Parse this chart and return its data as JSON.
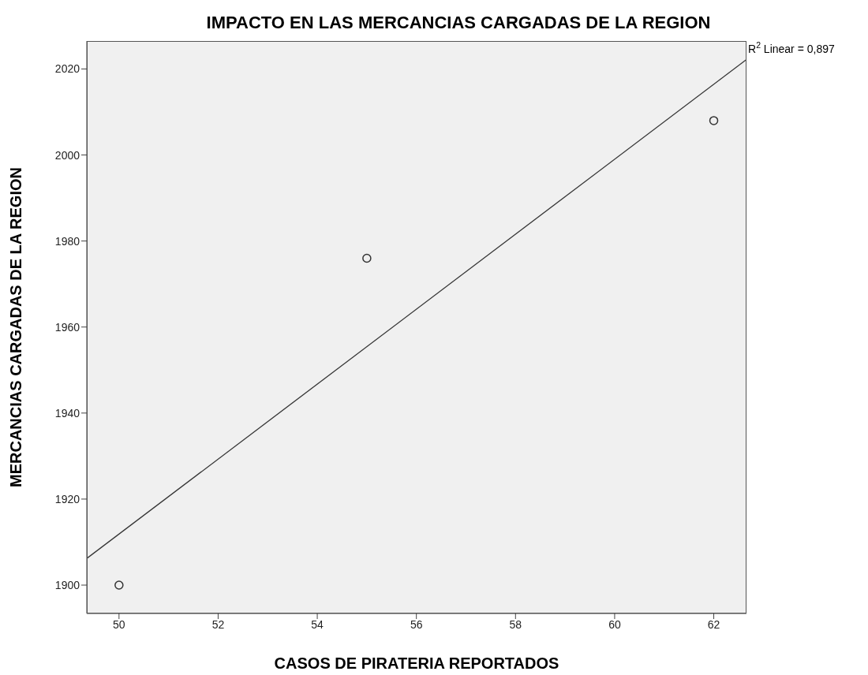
{
  "chart_data": {
    "type": "scatter",
    "title": "IMPACTO EN LAS MERCANCIAS CARGADAS DE LA REGION",
    "xlabel": "CASOS DE PIRATERIA REPORTADOS",
    "ylabel": "MERCANCIAS CARGADAS DE LA REGION",
    "marker": "circle",
    "grid": false,
    "series": [
      {
        "color": "#333333",
        "x": [
          50,
          55,
          62
        ],
        "values": [
          1900,
          1976,
          2008
        ]
      },
      {
        "type": "line",
        "marker": "none",
        "color": "#333333",
        "x": [
          49.35,
          62.66
        ],
        "values": [
          1906.2,
          2022.2
        ]
      }
    ],
    "annotations": [
      {
        "text": "R$^{2}$ Linear = 0,897",
        "x": 62.66,
        "y": 2022.2
      }
    ],
    "xlim": [
      49.35,
      62.66
    ],
    "ylim": [
      1893.4,
      2026.5
    ],
    "xticks": [
      50,
      52,
      54,
      56,
      58,
      60,
      62
    ],
    "yticks": [
      1900,
      1920,
      1940,
      1960,
      1980,
      2000,
      2020
    ]
  }
}
